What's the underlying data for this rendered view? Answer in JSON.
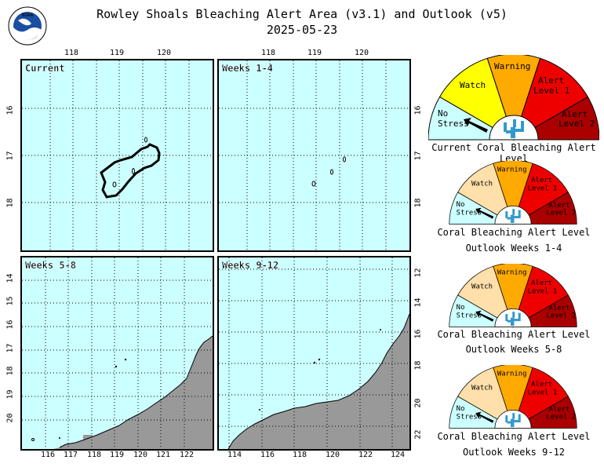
{
  "header": {
    "title": "Rowley Shoals Bleaching Alert Area (v3.1) and Outlook (v5)",
    "date": "2025-05-23",
    "logo_text": "NOAA"
  },
  "panels": {
    "current": {
      "label": "Current",
      "top_ticks": [
        "118",
        "119",
        "120"
      ],
      "right_ticks": [
        "16",
        "17",
        "18"
      ],
      "left_ticks": [
        "16",
        "17",
        "18"
      ]
    },
    "weeks_1_4": {
      "label": "Weeks 1-4",
      "top_ticks": [
        "118",
        "119",
        "120"
      ],
      "right_ticks": [
        "16",
        "17",
        "18"
      ]
    },
    "weeks_5_8": {
      "label": "Weeks 5-8",
      "left_ticks": [
        "14",
        "15",
        "16",
        "17",
        "18",
        "19",
        "20"
      ],
      "bottom_ticks": [
        "116",
        "117",
        "118",
        "119",
        "120",
        "121",
        "122"
      ]
    },
    "weeks_9_12": {
      "label": "Weeks 9-12",
      "right_ticks": [
        "12",
        "14",
        "16",
        "18",
        "20",
        "22"
      ],
      "bottom_ticks": [
        "114",
        "116",
        "118",
        "120",
        "122",
        "124"
      ]
    }
  },
  "gauge_labels": {
    "no_stress_1": "No",
    "no_stress_2": "Stress",
    "watch": "Watch",
    "warning": "Warning",
    "alert1_1": "Alert",
    "alert1_2": "Level 1",
    "alert2_1": "Alert",
    "alert2_2": "Level 2"
  },
  "gauges": [
    {
      "caption_1": "Current Coral Bleaching Alert Level",
      "caption_2": "",
      "active": "no_stress"
    },
    {
      "caption_1": "Coral Bleaching Alert Level",
      "caption_2": "Outlook Weeks 1-4",
      "active": "no_stress"
    },
    {
      "caption_1": "Coral Bleaching Alert Level",
      "caption_2": "Outlook Weeks 5-8",
      "active": "no_stress"
    },
    {
      "caption_1": "Coral Bleaching Alert Level",
      "caption_2": "Outlook Weeks 9-12",
      "active": "no_stress"
    }
  ],
  "colors": {
    "ocean": "#ccffff",
    "land": "#999999",
    "no_stress": "#ccffff",
    "watch_active": "#ffff00",
    "watch_muted": "#ffdfaa",
    "warning": "#ffaa00",
    "alert1": "#ee0000",
    "alert2": "#aa0000"
  }
}
